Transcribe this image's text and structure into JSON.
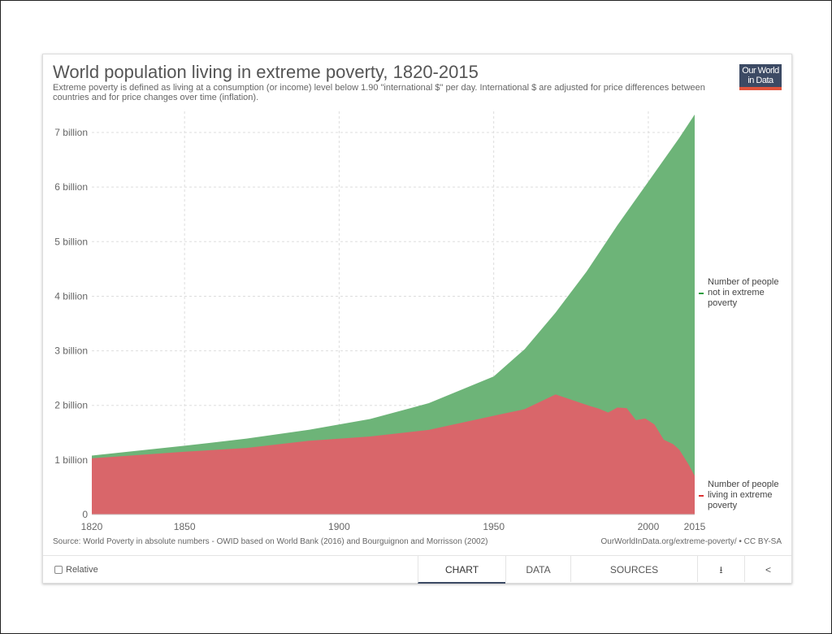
{
  "header": {
    "title": "World population living in extreme poverty, 1820-2015",
    "subtitle": "Extreme poverty is defined as living at a consumption (or income) level below 1.90 \"international $\" per day. International $ are adjusted for price differences between countries and for price changes over time (inflation).",
    "logo": "Our World in Data"
  },
  "footer": {
    "source": "Source: World Poverty in absolute numbers - OWID based on World Bank (2016) and Bourguignon and Morrisson (2002)",
    "license": "OurWorldInData.org/extreme-poverty/ • CC BY-SA"
  },
  "controls": {
    "relative": "Relative",
    "tabs": [
      "CHART",
      "DATA",
      "SOURCES"
    ],
    "active_tab": "CHART",
    "download_icon": "download-icon",
    "share_icon": "share-icon"
  },
  "chart_data": {
    "type": "area",
    "stacked": true,
    "grid": true,
    "legend": "right",
    "xlim": [
      1820,
      2015
    ],
    "ylim": [
      0,
      7.33
    ],
    "xticks": [
      "1820",
      "1850",
      "1900",
      "1950",
      "2000",
      "2015"
    ],
    "yticks": [
      "0",
      "1 billion",
      "2 billion",
      "3 billion",
      "4 billion",
      "5 billion",
      "6 billion",
      "7 billion"
    ],
    "series": [
      {
        "name": "Number of people living in extreme poverty",
        "color": "#d9666a",
        "points": [
          [
            1820,
            1.03
          ],
          [
            1850,
            1.15
          ],
          [
            1870,
            1.22
          ],
          [
            1890,
            1.35
          ],
          [
            1910,
            1.43
          ],
          [
            1929,
            1.55
          ],
          [
            1950,
            1.81
          ],
          [
            1960,
            1.93
          ],
          [
            1970,
            2.2
          ],
          [
            1981,
            1.99
          ],
          [
            1984,
            1.94
          ],
          [
            1987,
            1.87
          ],
          [
            1990,
            1.96
          ],
          [
            1993,
            1.95
          ],
          [
            1996,
            1.73
          ],
          [
            1999,
            1.76
          ],
          [
            2002,
            1.65
          ],
          [
            2005,
            1.37
          ],
          [
            2008,
            1.29
          ],
          [
            2010,
            1.19
          ],
          [
            2011,
            1.1
          ],
          [
            2013,
            0.92
          ],
          [
            2015,
            0.71
          ]
        ]
      },
      {
        "name": "Number of people not in extreme poverty",
        "color": "#6db478",
        "total_points": [
          [
            1820,
            1.08
          ],
          [
            1850,
            1.26
          ],
          [
            1870,
            1.39
          ],
          [
            1890,
            1.55
          ],
          [
            1910,
            1.75
          ],
          [
            1929,
            2.04
          ],
          [
            1950,
            2.53
          ],
          [
            1960,
            3.03
          ],
          [
            1970,
            3.7
          ],
          [
            1980,
            4.45
          ],
          [
            1990,
            5.3
          ],
          [
            2000,
            6.1
          ],
          [
            2010,
            6.9
          ],
          [
            2015,
            7.33
          ]
        ]
      }
    ]
  }
}
